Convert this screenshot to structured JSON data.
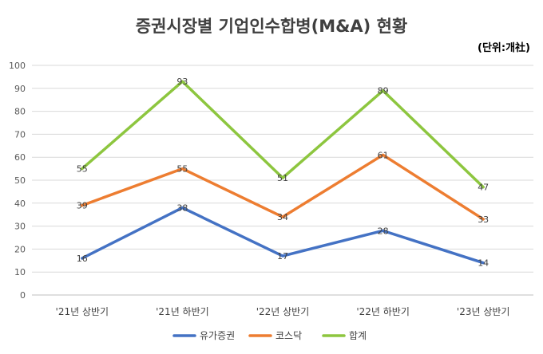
{
  "chart_data": {
    "type": "line",
    "title": "증권시장별 기업인수합병(M&A) 현황",
    "unit_note": "(단위:개社)",
    "categories": [
      "'21년 상반기",
      "'21년 하반기",
      "'22년 상반기",
      "'22년 하반기",
      "'23년 상반기"
    ],
    "ylim": [
      0,
      100
    ],
    "yticks": [
      0,
      10,
      20,
      30,
      40,
      50,
      60,
      70,
      80,
      90,
      100
    ],
    "grid": true,
    "legend_position": "bottom",
    "series": [
      {
        "name": "유가증권",
        "color": "#4472C4",
        "values": [
          16,
          38,
          17,
          28,
          14
        ]
      },
      {
        "name": "코스닥",
        "color": "#ED7D31",
        "values": [
          39,
          55,
          34,
          61,
          33
        ]
      },
      {
        "name": "합계",
        "color": "#8DC63F",
        "values": [
          55,
          93,
          51,
          89,
          47
        ]
      }
    ]
  }
}
